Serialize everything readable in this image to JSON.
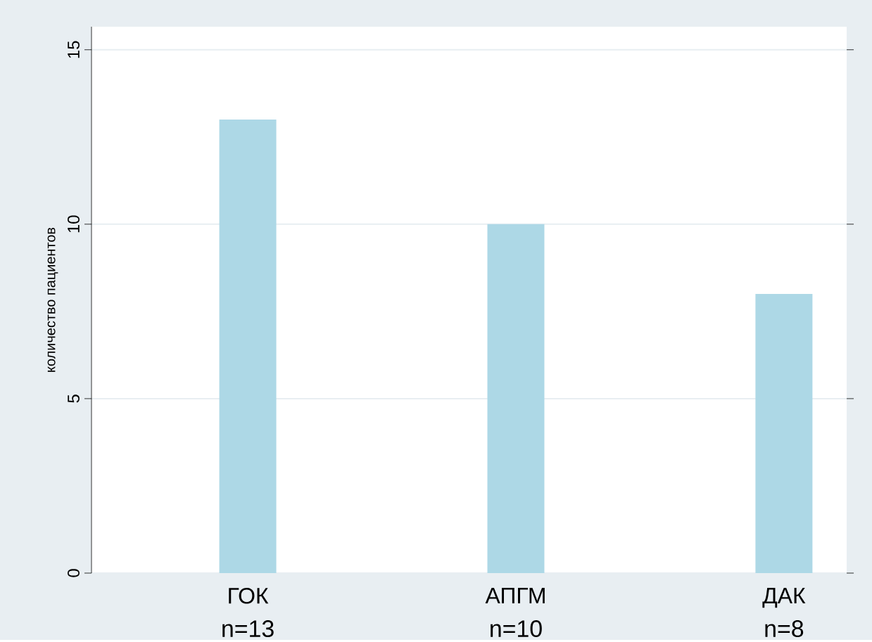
{
  "chart_data": {
    "type": "bar",
    "ylabel": "количество пациентов",
    "categories": [
      "ГОК",
      "АПГМ",
      "ДАК"
    ],
    "values": [
      13,
      10,
      8
    ],
    "color": "#add8e6",
    "ylim": [
      0,
      15.66
    ],
    "yticks": [
      0,
      5,
      10,
      15
    ],
    "grid": "y",
    "annotations": [
      "n=13",
      "n=10",
      "n=8"
    ]
  }
}
